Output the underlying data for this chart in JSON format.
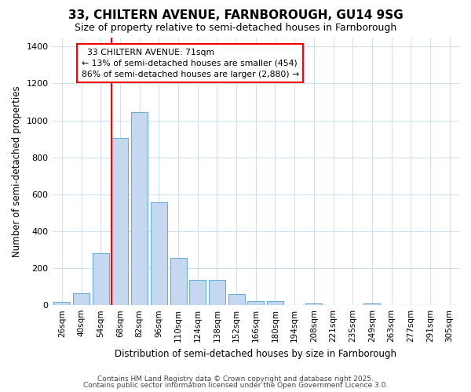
{
  "title": "33, CHILTERN AVENUE, FARNBOROUGH, GU14 9SG",
  "subtitle": "Size of property relative to semi-detached houses in Farnborough",
  "xlabel": "Distribution of semi-detached houses by size in Farnborough",
  "ylabel": "Number of semi-detached properties",
  "categories": [
    "26sqm",
    "40sqm",
    "54sqm",
    "68sqm",
    "82sqm",
    "96sqm",
    "110sqm",
    "124sqm",
    "138sqm",
    "152sqm",
    "166sqm",
    "180sqm",
    "194sqm",
    "208sqm",
    "221sqm",
    "235sqm",
    "249sqm",
    "263sqm",
    "277sqm",
    "291sqm",
    "305sqm"
  ],
  "values": [
    18,
    65,
    280,
    905,
    1045,
    555,
    255,
    135,
    135,
    62,
    22,
    20,
    0,
    10,
    0,
    0,
    10,
    0,
    0,
    0,
    0
  ],
  "bar_color": "#c5d8f0",
  "bar_edge_color": "#6aaed6",
  "property_label": "33 CHILTERN AVENUE: 71sqm",
  "pct_smaller": 13,
  "pct_larger": 86,
  "count_smaller": 454,
  "count_larger": 2880,
  "vline_x_index": 3,
  "ylim": [
    0,
    1450
  ],
  "yticks": [
    0,
    200,
    400,
    600,
    800,
    1000,
    1200,
    1400
  ],
  "bg_color": "#ffffff",
  "grid_color": "#d0e0f0",
  "footer1": "Contains HM Land Registry data © Crown copyright and database right 2025.",
  "footer2": "Contains public sector information licensed under the Open Government Licence 3.0."
}
